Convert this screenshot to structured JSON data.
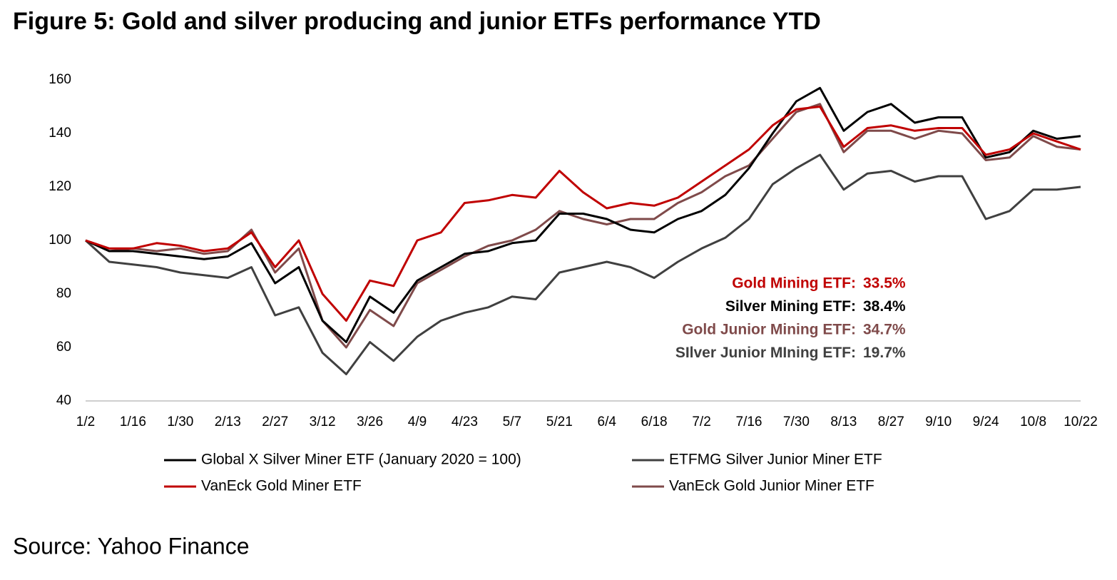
{
  "chart_data": {
    "type": "line",
    "title": "Figure 5: Gold and silver producing and junior ETFs performance YTD",
    "categories": [
      "1/2",
      null,
      "1/16",
      null,
      "1/30",
      null,
      "2/13",
      null,
      "2/27",
      null,
      "3/12",
      null,
      "3/26",
      null,
      "4/9",
      null,
      "4/23",
      null,
      "5/7",
      null,
      "5/21",
      null,
      "6/4",
      null,
      "6/18",
      null,
      "7/2",
      null,
      "7/16",
      null,
      "7/30",
      null,
      "8/13",
      null,
      "8/27",
      null,
      "9/10",
      null,
      "9/24",
      null,
      "10/8",
      null,
      "10/22"
    ],
    "series": [
      {
        "name": "ETFMG Silver Junior Miner ETF",
        "color": "#404040",
        "values": [
          100,
          92,
          91,
          90,
          88,
          87,
          86,
          90,
          72,
          75,
          58,
          50,
          62,
          55,
          64,
          70,
          73,
          75,
          79,
          78,
          88,
          90,
          92,
          90,
          86,
          92,
          97,
          101,
          108,
          121,
          127,
          132,
          119,
          125,
          126,
          122,
          124,
          124,
          108,
          111,
          119,
          119,
          120
        ]
      },
      {
        "name": "VanEck Gold Junior Miner ETF",
        "color": "#7f4a4a",
        "values": [
          100,
          96,
          97,
          96,
          97,
          95,
          96,
          104,
          88,
          97,
          70,
          60,
          74,
          68,
          84,
          89,
          94,
          98,
          100,
          104,
          111,
          108,
          106,
          108,
          108,
          114,
          118,
          124,
          128,
          138,
          148,
          151,
          133,
          141,
          141,
          138,
          141,
          140,
          130,
          131,
          139,
          135,
          134
        ]
      },
      {
        "name": "Global X Silver Miner ETF (January 2020 = 100)",
        "color": "#000000",
        "values": [
          100,
          96,
          96,
          95,
          94,
          93,
          94,
          99,
          84,
          90,
          70,
          62,
          79,
          73,
          85,
          90,
          95,
          96,
          99,
          100,
          110,
          110,
          108,
          104,
          103,
          108,
          111,
          117,
          127,
          140,
          152,
          157,
          141,
          148,
          151,
          144,
          146,
          146,
          131,
          133,
          141,
          138,
          139
        ]
      },
      {
        "name": "VanEck Gold Miner ETF",
        "color": "#c00000",
        "values": [
          100,
          97,
          97,
          99,
          98,
          96,
          97,
          103,
          90,
          100,
          80,
          70,
          85,
          83,
          100,
          103,
          114,
          115,
          117,
          116,
          126,
          118,
          112,
          114,
          113,
          116,
          122,
          128,
          134,
          143,
          149,
          150,
          135,
          142,
          143,
          141,
          142,
          142,
          132,
          134,
          140,
          137,
          134
        ]
      }
    ],
    "ylim": [
      40,
      160
    ],
    "yticks": [
      40,
      60,
      80,
      100,
      120,
      140,
      160
    ],
    "grid": false,
    "annotations": [
      {
        "label": "Gold Mining ETF:",
        "value": "33.5%",
        "color": "#c00000"
      },
      {
        "label": "Silver Mining ETF:",
        "value": "38.4%",
        "color": "#000000"
      },
      {
        "label": "Gold Junior Mining ETF:",
        "value": "34.7%",
        "color": "#7f4a4a"
      },
      {
        "label": "SIlver Junior MIning ETF:",
        "value": "19.7%",
        "color": "#404040"
      }
    ],
    "source": "Source: Yahoo Finance"
  }
}
